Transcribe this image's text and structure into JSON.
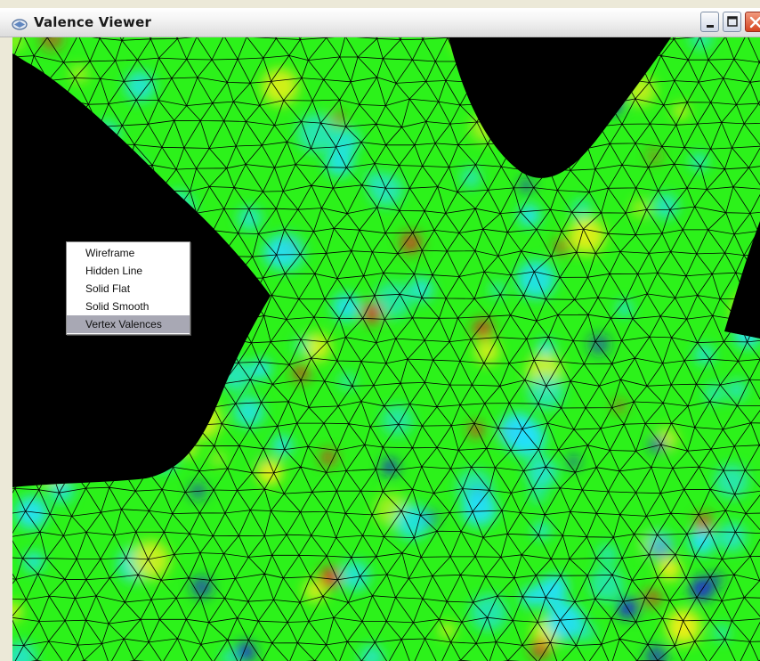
{
  "window": {
    "title": "Valence Viewer",
    "icon": "app-icon",
    "controls": [
      "minimize-icon",
      "maximize-icon",
      "close-icon"
    ]
  },
  "viewport": {
    "render_mode": "Vertex Valences",
    "background": "#000000",
    "mesh_base_color": "#2cf21a",
    "valence_colors": {
      "low": "#1c1cd6",
      "low_mid": "#22e0ff",
      "mid_high": "#f2ef1a",
      "high": "#e2221e"
    }
  },
  "context_menu": {
    "items": [
      {
        "label": "Wireframe",
        "selected": false
      },
      {
        "label": "Hidden Line",
        "selected": false
      },
      {
        "label": "Solid Flat",
        "selected": false
      },
      {
        "label": "Solid Smooth",
        "selected": false
      },
      {
        "label": "Vertex Valences",
        "selected": true
      }
    ]
  }
}
